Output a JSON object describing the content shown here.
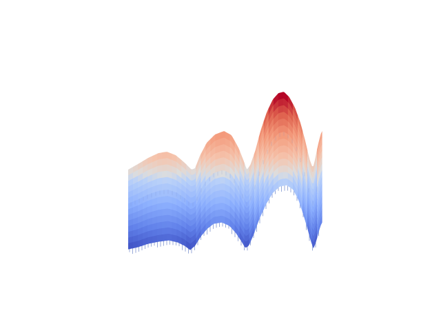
{
  "chart_data": {
    "type": "surface3d",
    "title": "",
    "xlabel": "",
    "ylabel": "",
    "zlabel": "",
    "axes_visible": false,
    "grid": false,
    "colormap": "coolwarm",
    "z_range": [
      -1,
      1
    ],
    "ridges": [
      {
        "position": 0.15,
        "peak_z": 0.1
      },
      {
        "position": 0.43,
        "peak_z": 0.28
      },
      {
        "position": 0.77,
        "peak_z": 1.0
      },
      {
        "position": 1.0,
        "peak_z": 0.3
      }
    ],
    "troughs": [
      {
        "position": 0.32,
        "min_z": -0.45
      },
      {
        "position": 0.6,
        "min_z": -0.6
      },
      {
        "position": 0.95,
        "min_z": -0.9
      }
    ]
  }
}
